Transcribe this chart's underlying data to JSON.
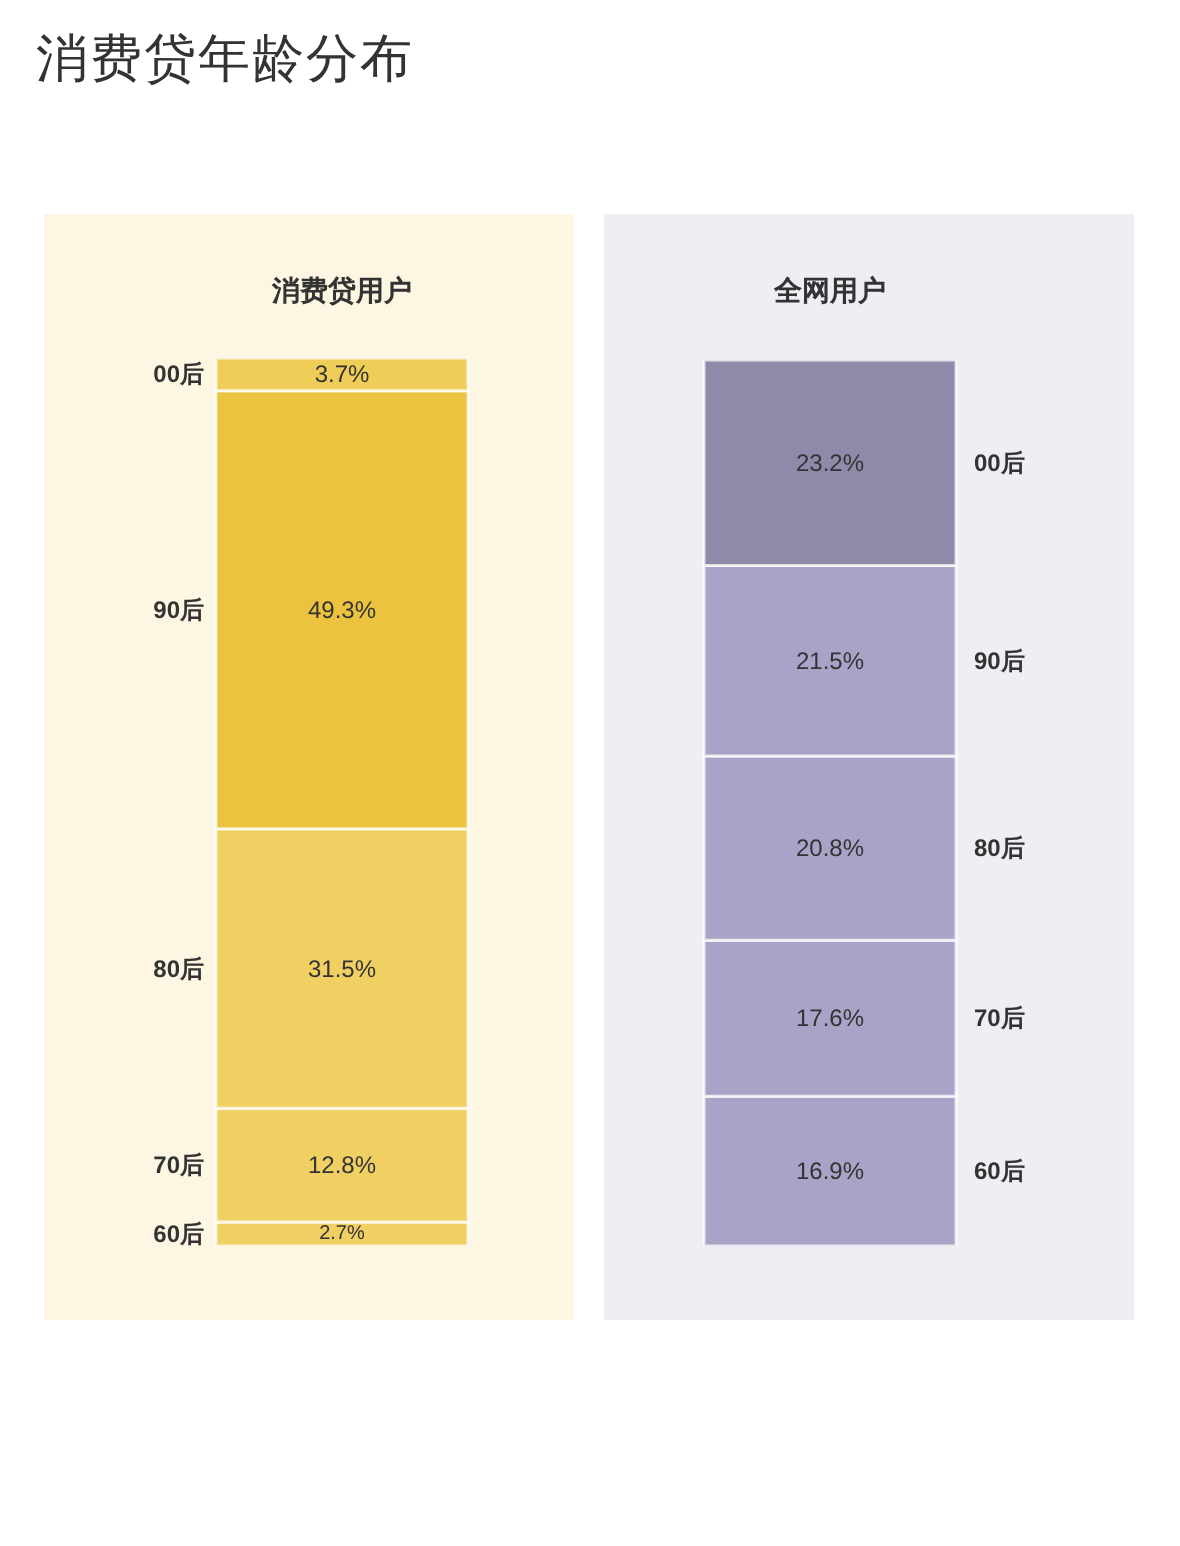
{
  "chart_data": [
    {
      "type": "other",
      "title": "消费贷年龄分布"
    },
    {
      "type": "bar",
      "title": "消费贷用户",
      "stacked": true,
      "categories": [
        null
      ],
      "ylim": [
        0,
        100
      ],
      "tick_labels": false,
      "series": [
        {
          "name": "60后",
          "color": "#f0d062",
          "values": [
            2.7
          ],
          "value_labels": [
            "2.7%"
          ]
        },
        {
          "name": "70后",
          "color": "#f0d062",
          "values": [
            12.8
          ],
          "value_labels": [
            "12.8%"
          ]
        },
        {
          "name": "80后",
          "color": "#f0d062",
          "values": [
            31.5
          ],
          "value_labels": [
            "31.5%"
          ]
        },
        {
          "name": "90后",
          "color": "#ebc33e",
          "values": [
            49.3
          ],
          "value_labels": [
            "49.3%"
          ]
        },
        {
          "name": "00后",
          "color": "#efcd58",
          "values": [
            3.7
          ],
          "value_labels": [
            "3.7%"
          ]
        }
      ]
    },
    {
      "type": "bar",
      "title": "全网用户",
      "stacked": true,
      "categories": [
        null
      ],
      "ylim": [
        0,
        100
      ],
      "tick_labels": false,
      "series": [
        {
          "name": "60后",
          "color": "#a8a4c8",
          "values": [
            16.9
          ],
          "value_labels": [
            "16.9%"
          ]
        },
        {
          "name": "70后",
          "color": "#a8a4c8",
          "values": [
            17.6
          ],
          "value_labels": [
            "17.6%"
          ]
        },
        {
          "name": "80后",
          "color": "#a8a4c8",
          "values": [
            20.8
          ],
          "value_labels": [
            "20.8%"
          ]
        },
        {
          "name": "90后",
          "color": "#a8a4c8",
          "values": [
            21.5
          ],
          "value_labels": [
            "21.5%"
          ]
        },
        {
          "name": "00后",
          "color": "#8e8aaa",
          "values": [
            23.2
          ],
          "value_labels": [
            "23.2%"
          ]
        }
      ]
    }
  ]
}
